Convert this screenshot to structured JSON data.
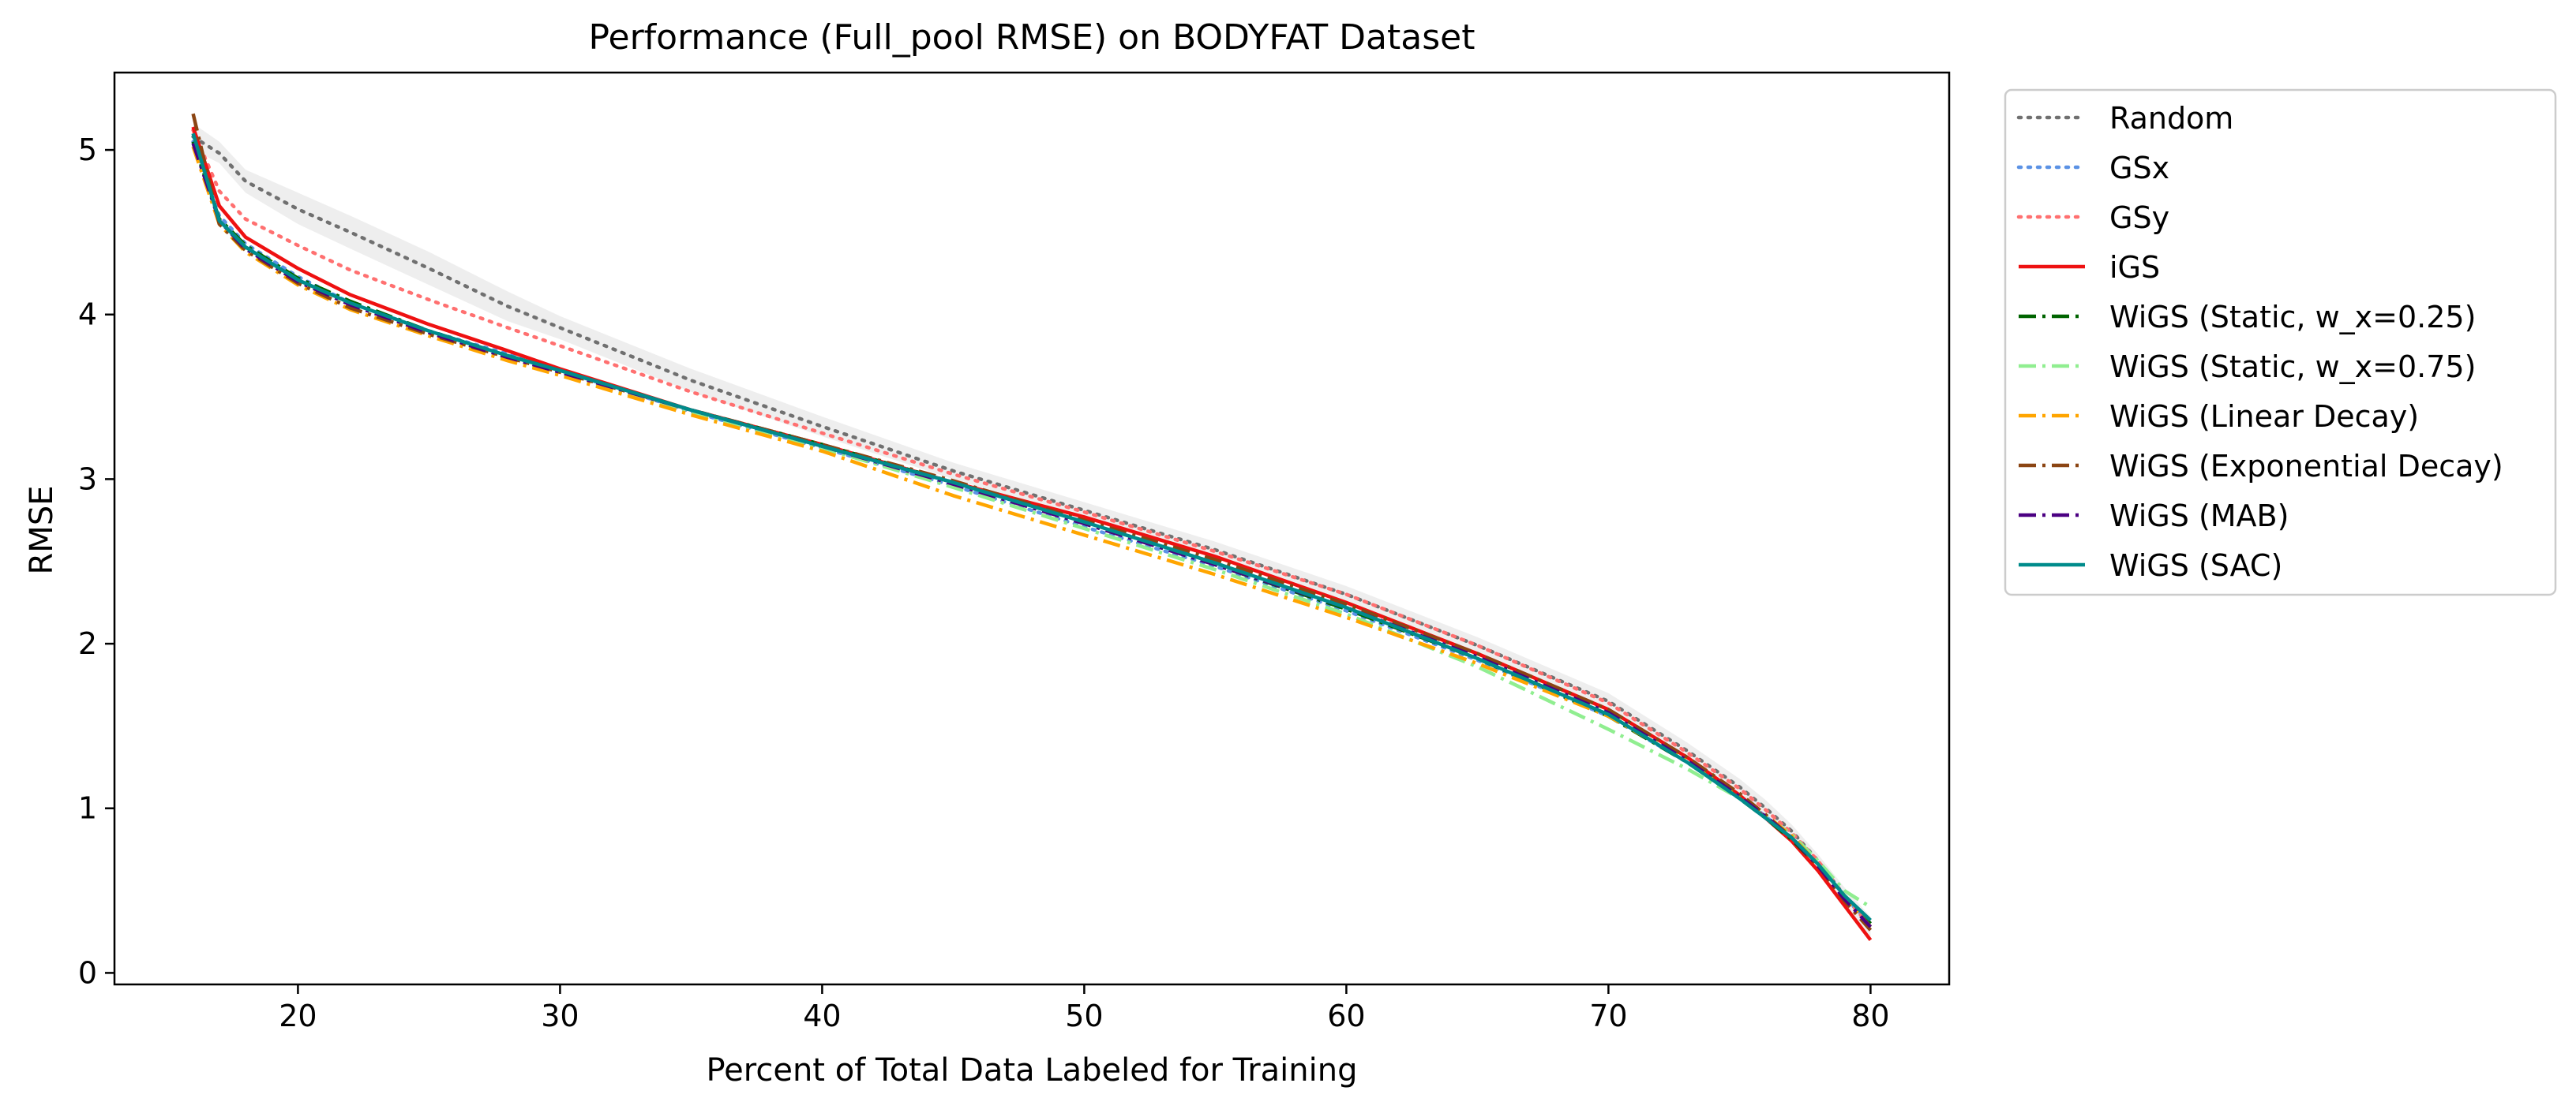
{
  "chart_data": {
    "type": "line",
    "title": "Performance (Full_pool RMSE) on BODYFAT Dataset",
    "xlabel": "Percent of Total Data Labeled for Training",
    "ylabel": "RMSE",
    "xlim": [
      13,
      83
    ],
    "ylim": [
      -0.07,
      5.47
    ],
    "xticks": [
      20,
      30,
      40,
      50,
      60,
      70,
      80
    ],
    "yticks": [
      0,
      1,
      2,
      3,
      4,
      5
    ],
    "grid": false,
    "legend_position": "outside-top-right",
    "x": [
      16,
      17,
      18,
      20,
      22,
      25,
      28,
      30,
      35,
      40,
      45,
      50,
      55,
      60,
      65,
      70,
      73,
      75,
      76,
      77,
      78,
      79,
      80
    ],
    "band": {
      "series": "Random",
      "color": "#bbbbbb",
      "upper": [
        5.16,
        5.05,
        4.88,
        4.74,
        4.6,
        4.38,
        4.14,
        3.99,
        3.67,
        3.38,
        3.1,
        2.86,
        2.62,
        2.35,
        2.04,
        1.7,
        1.4,
        1.18,
        1.05,
        0.9,
        0.72,
        0.52,
        0.34
      ],
      "lower": [
        5.0,
        4.92,
        4.74,
        4.55,
        4.4,
        4.18,
        3.96,
        3.85,
        3.53,
        3.26,
        3.0,
        2.76,
        2.52,
        2.25,
        1.94,
        1.6,
        1.3,
        1.08,
        0.95,
        0.82,
        0.64,
        0.42,
        0.22
      ]
    },
    "series": [
      {
        "name": "Random",
        "color": "#707070",
        "dash": "dotted",
        "values": [
          5.08,
          4.98,
          4.81,
          4.64,
          4.5,
          4.28,
          4.05,
          3.92,
          3.6,
          3.32,
          3.05,
          2.81,
          2.57,
          2.3,
          1.99,
          1.65,
          1.35,
          1.13,
          1.0,
          0.86,
          0.68,
          0.47,
          0.28
        ]
      },
      {
        "name": "GSx",
        "color": "#5b92e5",
        "dash": "dotted",
        "values": [
          5.05,
          4.6,
          4.43,
          4.23,
          4.07,
          3.9,
          3.76,
          3.66,
          3.41,
          3.19,
          2.96,
          2.71,
          2.47,
          2.2,
          1.9,
          1.56,
          1.28,
          1.07,
          0.95,
          0.82,
          0.66,
          0.46,
          0.3
        ]
      },
      {
        "name": "GSy",
        "color": "#ff7070",
        "dash": "dotted",
        "values": [
          5.12,
          4.75,
          4.58,
          4.42,
          4.27,
          4.09,
          3.92,
          3.81,
          3.53,
          3.28,
          3.03,
          2.8,
          2.56,
          2.3,
          1.99,
          1.64,
          1.34,
          1.12,
          0.99,
          0.85,
          0.68,
          0.47,
          0.28
        ]
      },
      {
        "name": "iGS",
        "color": "#ee1111",
        "dash": "solid",
        "values": [
          5.14,
          4.66,
          4.47,
          4.28,
          4.12,
          3.94,
          3.78,
          3.67,
          3.42,
          3.21,
          2.98,
          2.77,
          2.53,
          2.25,
          1.94,
          1.6,
          1.31,
          1.08,
          0.94,
          0.8,
          0.62,
          0.41,
          0.2
        ]
      },
      {
        "name": "WiGS (Static, w_x=0.25)",
        "color": "#006400",
        "dash": "dashdot",
        "values": [
          5.05,
          4.58,
          4.42,
          4.22,
          4.08,
          3.9,
          3.75,
          3.66,
          3.42,
          3.21,
          2.98,
          2.73,
          2.48,
          2.21,
          1.91,
          1.56,
          1.28,
          1.06,
          0.94,
          0.81,
          0.65,
          0.46,
          0.3
        ]
      },
      {
        "name": "WiGS (Static, w_x=0.75)",
        "color": "#90ee90",
        "dash": "dashdot",
        "values": [
          5.04,
          4.57,
          4.41,
          4.21,
          4.06,
          3.89,
          3.73,
          3.64,
          3.4,
          3.19,
          2.95,
          2.7,
          2.45,
          2.18,
          1.86,
          1.48,
          1.24,
          1.06,
          0.95,
          0.84,
          0.68,
          0.5,
          0.4
        ]
      },
      {
        "name": "WiGS (Linear Decay)",
        "color": "#ffa500",
        "dash": "dashdot",
        "values": [
          5.02,
          4.55,
          4.38,
          4.18,
          4.03,
          3.87,
          3.72,
          3.63,
          3.39,
          3.17,
          2.9,
          2.66,
          2.42,
          2.16,
          1.88,
          1.56,
          1.29,
          1.08,
          0.96,
          0.83,
          0.66,
          0.46,
          0.28
        ]
      },
      {
        "name": "WiGS (Exponential Decay)",
        "color": "#8b4513",
        "dash": "dashdot",
        "values": [
          5.22,
          4.55,
          4.39,
          4.19,
          4.04,
          3.88,
          3.74,
          3.65,
          3.42,
          3.21,
          2.99,
          2.75,
          2.51,
          2.24,
          1.94,
          1.6,
          1.31,
          1.09,
          0.96,
          0.82,
          0.65,
          0.44,
          0.26
        ]
      },
      {
        "name": "WiGS (MAB)",
        "color": "#4b0082",
        "dash": "dashdot",
        "values": [
          5.04,
          4.57,
          4.4,
          4.2,
          4.06,
          3.89,
          3.74,
          3.65,
          3.42,
          3.2,
          2.97,
          2.73,
          2.48,
          2.22,
          1.92,
          1.58,
          1.29,
          1.07,
          0.95,
          0.82,
          0.65,
          0.45,
          0.28
        ]
      },
      {
        "name": "WiGS (SAC)",
        "color": "#008b8b",
        "dash": "solid",
        "values": [
          5.1,
          4.57,
          4.41,
          4.21,
          4.07,
          3.9,
          3.75,
          3.66,
          3.42,
          3.2,
          2.98,
          2.74,
          2.49,
          2.22,
          1.91,
          1.57,
          1.28,
          1.06,
          0.94,
          0.82,
          0.66,
          0.47,
          0.32
        ]
      }
    ]
  }
}
